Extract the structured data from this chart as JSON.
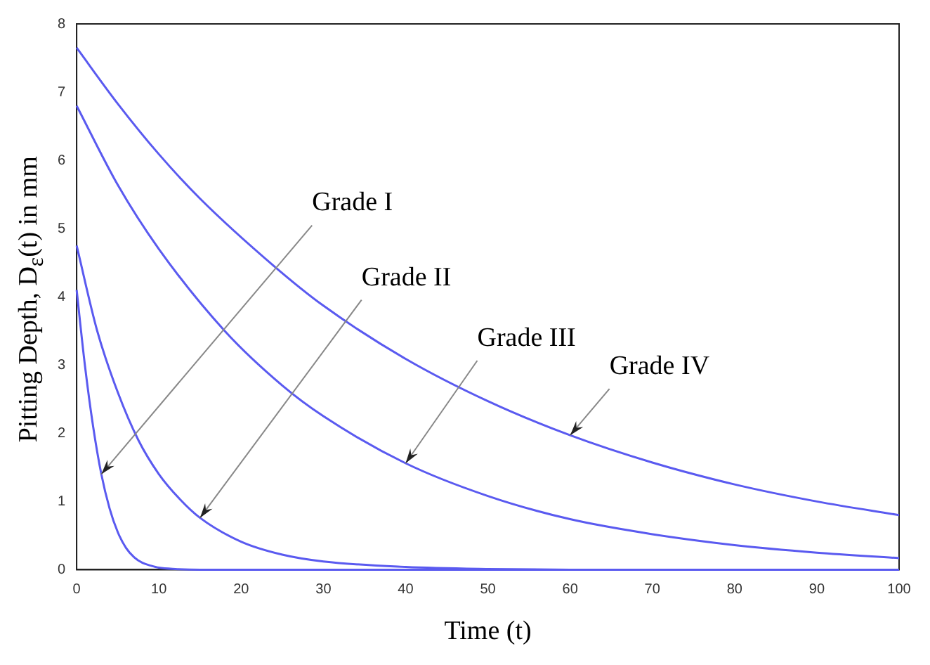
{
  "chart_data": {
    "type": "line",
    "xlabel": "Time (t)",
    "ylabel": "Pitting Depth, D$_{ε}$(t) in mm",
    "xlim": [
      0,
      100
    ],
    "ylim": [
      0,
      8
    ],
    "xticks": [
      0,
      10,
      20,
      30,
      40,
      50,
      60,
      70,
      80,
      90,
      100
    ],
    "yticks": [
      0,
      1,
      2,
      3,
      4,
      5,
      6,
      7,
      8
    ],
    "grid": false,
    "legend": false,
    "marker": "none",
    "line_style": "solid",
    "annotations": [
      {
        "text": "Grade I",
        "x": 3,
        "y": 1.4
      },
      {
        "text": "Grade II",
        "x": 15,
        "y": 0.76
      },
      {
        "text": "Grade III",
        "x": 40,
        "y": 1.56
      },
      {
        "text": "Grade IV",
        "x": 60,
        "y": 1.97
      }
    ],
    "series": [
      {
        "color": "#5a5af0",
        "x": [
          0,
          1,
          2,
          3,
          4,
          5,
          6,
          7,
          8,
          9,
          10,
          12,
          15,
          20,
          30,
          50,
          100
        ],
        "values": [
          4.1,
          3.0,
          2.1,
          1.4,
          0.9,
          0.55,
          0.32,
          0.18,
          0.1,
          0.06,
          0.03,
          0.01,
          0,
          0,
          0,
          0,
          0
        ]
      },
      {
        "color": "#5a5af0",
        "x": [
          0,
          2.5,
          5,
          7.5,
          10,
          12.5,
          15,
          20,
          25,
          30,
          40,
          50,
          60,
          80,
          100
        ],
        "values": [
          4.75,
          3.5,
          2.6,
          1.9,
          1.4,
          1.04,
          0.76,
          0.41,
          0.22,
          0.12,
          0.04,
          0.01,
          0,
          0,
          0
        ]
      },
      {
        "color": "#5a5af0",
        "x": [
          0,
          5,
          10,
          18,
          25,
          30,
          40,
          50,
          60,
          70,
          80,
          90,
          100
        ],
        "values": [
          6.8,
          5.64,
          4.7,
          3.5,
          2.7,
          2.25,
          1.56,
          1.08,
          0.74,
          0.52,
          0.36,
          0.25,
          0.17
        ]
      },
      {
        "color": "#5a5af0",
        "x": [
          0,
          5,
          10,
          15,
          24,
          30,
          40,
          50,
          60,
          70,
          80,
          90,
          100
        ],
        "values": [
          7.65,
          6.83,
          6.09,
          5.44,
          4.45,
          3.87,
          3.09,
          2.47,
          1.97,
          1.57,
          1.25,
          1.0,
          0.8
        ]
      }
    ]
  }
}
